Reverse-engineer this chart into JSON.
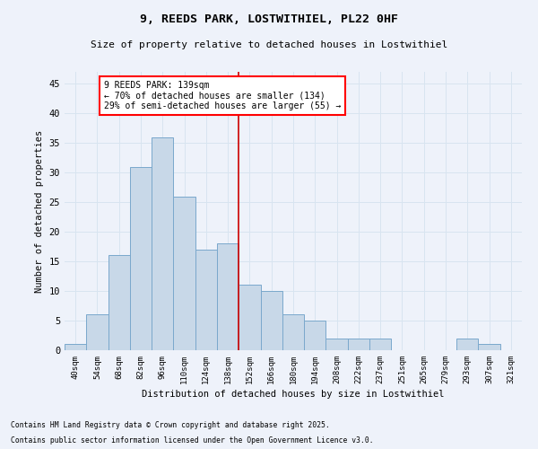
{
  "title_line1": "9, REEDS PARK, LOSTWITHIEL, PL22 0HF",
  "title_line2": "Size of property relative to detached houses in Lostwithiel",
  "xlabel": "Distribution of detached houses by size in Lostwithiel",
  "ylabel": "Number of detached properties",
  "footnote1": "Contains HM Land Registry data © Crown copyright and database right 2025.",
  "footnote2": "Contains public sector information licensed under the Open Government Licence v3.0.",
  "bar_labels": [
    "40sqm",
    "54sqm",
    "68sqm",
    "82sqm",
    "96sqm",
    "110sqm",
    "124sqm",
    "138sqm",
    "152sqm",
    "166sqm",
    "180sqm",
    "194sqm",
    "208sqm",
    "222sqm",
    "237sqm",
    "251sqm",
    "265sqm",
    "279sqm",
    "293sqm",
    "307sqm",
    "321sqm"
  ],
  "bar_values": [
    1,
    6,
    16,
    31,
    36,
    26,
    17,
    18,
    11,
    10,
    6,
    5,
    2,
    2,
    2,
    0,
    0,
    0,
    2,
    1,
    0
  ],
  "bar_color": "#C8D8E8",
  "bar_edge_color": "#7AA8CC",
  "grid_color": "#D8E4F0",
  "background_color": "#EEF2FA",
  "vline_x_idx": 7.5,
  "vline_color": "#CC0000",
  "annotation_title": "9 REEDS PARK: 139sqm",
  "annotation_line2": "← 70% of detached houses are smaller (134)",
  "annotation_line3": "29% of semi-detached houses are larger (55) →",
  "ylim": [
    0,
    47
  ],
  "yticks": [
    0,
    5,
    10,
    15,
    20,
    25,
    30,
    35,
    40,
    45
  ]
}
